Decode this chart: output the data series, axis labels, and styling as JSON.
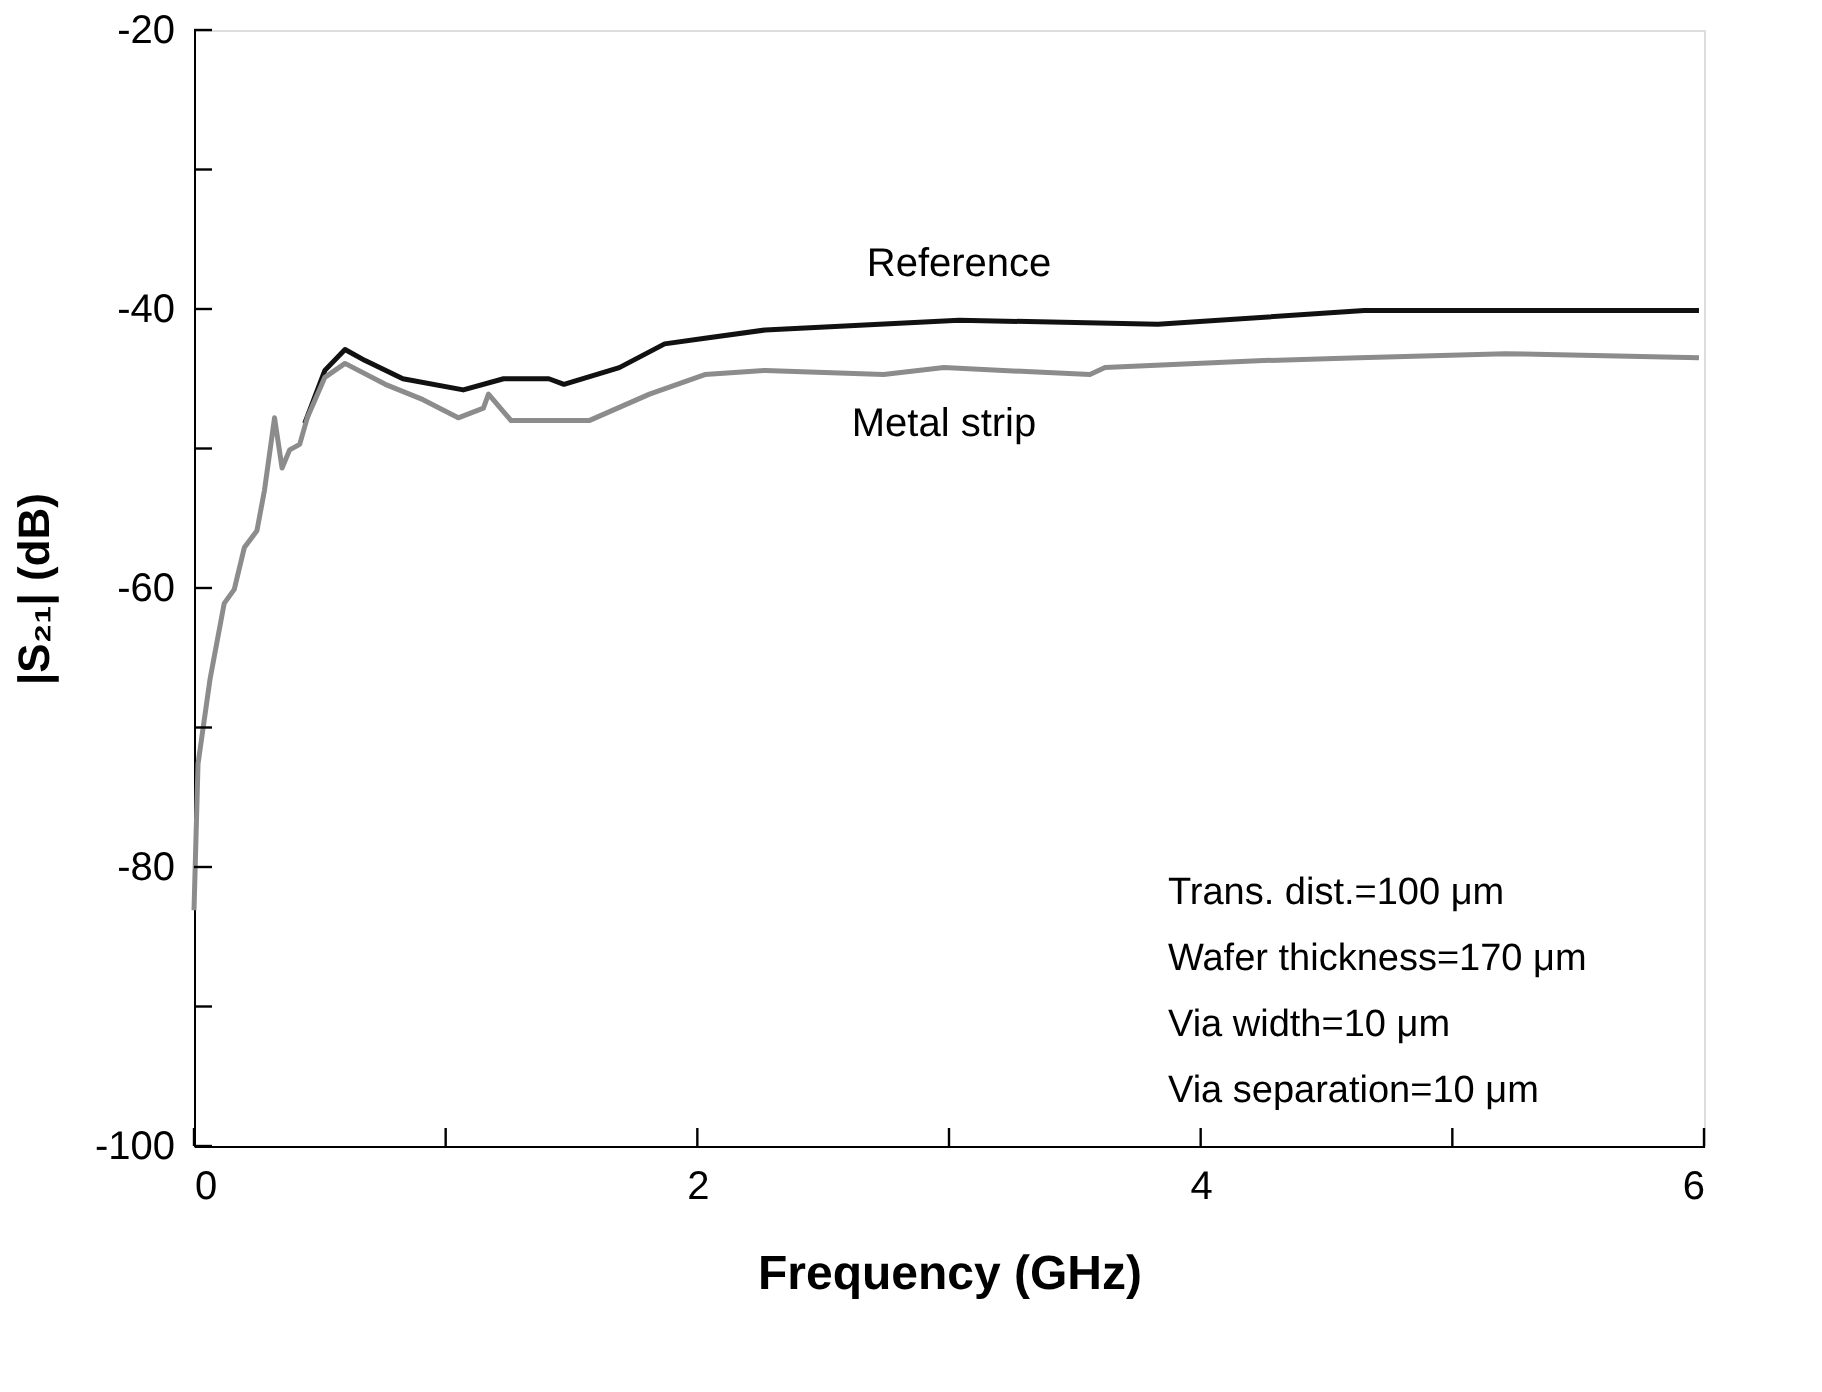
{
  "chart_data": {
    "type": "line",
    "xlabel": "Frequency (GHz)",
    "ylabel": "|S₂₁| (dB)",
    "xlim": [
      0,
      6
    ],
    "ylim": [
      -100,
      -20
    ],
    "xticks": [
      0,
      {
        "value": 1,
        "label": null
      },
      2,
      {
        "value": 3,
        "label": null
      },
      4,
      {
        "value": 5,
        "label": null
      },
      6
    ],
    "yticks": [
      -100,
      {
        "value": -90,
        "label": null
      },
      -80,
      {
        "value": -70,
        "label": null
      },
      -60,
      {
        "value": -50,
        "label": null
      },
      -40,
      {
        "value": -30,
        "label": null
      },
      -20
    ],
    "grid": false,
    "legend": false,
    "marker": "none",
    "line_style": "solid",
    "series": [
      {
        "name": "Reference",
        "color": "#111111",
        "x": [
          0.44,
          0.52,
          0.6,
          0.68,
          0.83,
          1.07,
          1.23,
          1.41,
          1.47,
          1.69,
          1.87,
          2.03,
          2.27,
          3.04,
          3.83,
          4.65,
          5.98
        ],
        "values": [
          -48.2,
          -44.4,
          -42.9,
          -43.7,
          -45,
          -45.8,
          -45,
          -45,
          -45.4,
          -44.2,
          -42.5,
          -42.1,
          -41.5,
          -40.8,
          -41.1,
          -40.1,
          -40.1
        ]
      },
      {
        "name": "Metal strip",
        "color": "#8c8c8c",
        "x": [
          0,
          0.016,
          0.064,
          0.12,
          0.16,
          0.2,
          0.25,
          0.28,
          0.32,
          0.35,
          0.38,
          0.42,
          0.45,
          0.52,
          0.6,
          0.76,
          0.91,
          1.05,
          1.15,
          1.17,
          1.26,
          1.44,
          1.57,
          1.81,
          2.03,
          2.27,
          2.74,
          2.98,
          3.56,
          3.62,
          4.25,
          4.63,
          5.21,
          5.98
        ],
        "values": [
          -83.1,
          -72.6,
          -66.5,
          -61.1,
          -60.1,
          -57.1,
          -55.9,
          -53,
          -47.8,
          -51.4,
          -50.1,
          -49.7,
          -47.8,
          -44.9,
          -43.9,
          -45.4,
          -46.5,
          -47.8,
          -47.1,
          -46.1,
          -48,
          -48,
          -48,
          -46.1,
          -44.7,
          -44.4,
          -44.7,
          -44.2,
          -44.7,
          -44.2,
          -43.7,
          -43.5,
          -43.2,
          -43.5
        ]
      }
    ],
    "annotations": [
      "Trans. dist.=100 μm",
      "Wafer thickness=170 μm",
      "Via width=10 μm",
      "Via separation=10 μm"
    ]
  }
}
